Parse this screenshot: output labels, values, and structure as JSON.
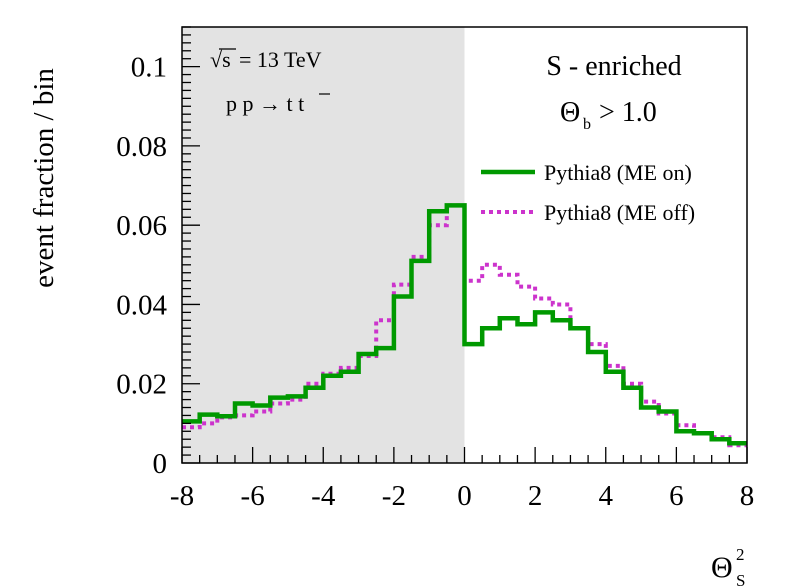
{
  "chart_data": {
    "type": "histogram",
    "xlabel": "Θ",
    "xlabel_sub": "S",
    "xlabel_sup": "2",
    "ylabel": "event fraction / bin",
    "xlim": [
      -8,
      8
    ],
    "ylim": [
      0,
      0.11
    ],
    "xticks": [
      -8,
      -6,
      -4,
      -2,
      0,
      2,
      4,
      6,
      8
    ],
    "xtick_labels": [
      "-8",
      "-6",
      "-4",
      "-2",
      "0",
      "2",
      "4",
      "6",
      "8"
    ],
    "yticks": [
      0,
      0.02,
      0.04,
      0.06,
      0.08,
      0.1
    ],
    "ytick_labels": [
      "0",
      "0.02",
      "0.04",
      "0.06",
      "0.08",
      "0.1"
    ],
    "shaded_region": [
      -8,
      0
    ],
    "shaded_color": "#e3e3e3",
    "bin_edges": [
      -8,
      -7.5,
      -7,
      -6.5,
      -6,
      -5.5,
      -5,
      -4.5,
      -4,
      -3.5,
      -3,
      -2.5,
      -2,
      -1.5,
      -1,
      -0.5,
      0,
      0.5,
      1,
      1.5,
      2,
      2.5,
      3,
      3.5,
      4,
      4.5,
      5,
      5.5,
      6,
      6.5,
      7,
      7.5,
      8
    ],
    "series": [
      {
        "name": "Pythia8 (ME on)",
        "color": "#009900",
        "style": "solid",
        "values": [
          0.0105,
          0.0122,
          0.0118,
          0.015,
          0.0145,
          0.0165,
          0.0168,
          0.019,
          0.022,
          0.023,
          0.0275,
          0.029,
          0.042,
          0.051,
          0.0635,
          0.065,
          0.03,
          0.034,
          0.0365,
          0.035,
          0.038,
          0.036,
          0.034,
          0.028,
          0.023,
          0.019,
          0.014,
          0.013,
          0.008,
          0.0075,
          0.006,
          0.005
        ]
      },
      {
        "name": "Pythia8 (ME off)",
        "color": "#cc33cc",
        "style": "dotted",
        "values": [
          0.009,
          0.01,
          0.0115,
          0.012,
          0.013,
          0.015,
          0.016,
          0.02,
          0.0225,
          0.024,
          0.027,
          0.036,
          0.045,
          0.052,
          0.06,
          0.065,
          0.046,
          0.05,
          0.0475,
          0.0445,
          0.0415,
          0.04,
          0.034,
          0.03,
          0.0245,
          0.02,
          0.0155,
          0.0125,
          0.0095,
          0.0075,
          0.0065,
          0.0045
        ]
      }
    ],
    "annotations": {
      "energy_sqrt": "√s",
      "energy_value": "= 13 TeV",
      "process": "p p → t t",
      "region": "S - enriched",
      "cut_symbol": "Θ",
      "cut_sub": "b",
      "cut_value": "> 1.0"
    }
  }
}
